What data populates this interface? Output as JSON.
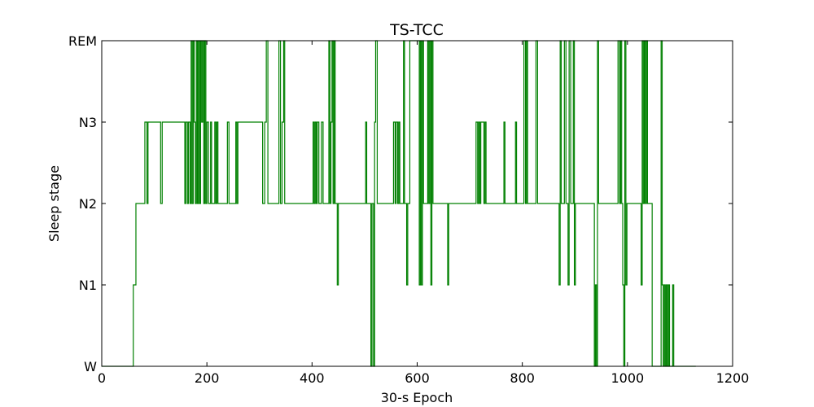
{
  "chart_data": {
    "type": "line",
    "title": "TS-TCC",
    "xlabel": "30-s Epoch",
    "ylabel": "Sleep stage",
    "xlim": [
      0,
      1200
    ],
    "x_ticks": [
      0,
      200,
      400,
      600,
      800,
      1000,
      1200
    ],
    "y_categories": [
      "W",
      "N1",
      "N2",
      "N3",
      "REM"
    ],
    "grid": false,
    "line_color": "#008000",
    "series": [
      {
        "step_points": [
          [
            0,
            0
          ],
          [
            60,
            0
          ],
          [
            60,
            1
          ],
          [
            65,
            1
          ],
          [
            65,
            2
          ],
          [
            82,
            2
          ],
          [
            82,
            3
          ],
          [
            86,
            3
          ],
          [
            86,
            2
          ],
          [
            88,
            2
          ],
          [
            88,
            3
          ],
          [
            112,
            3
          ],
          [
            112,
            2
          ],
          [
            115,
            2
          ],
          [
            115,
            3
          ],
          [
            158,
            3
          ],
          [
            158,
            2
          ],
          [
            160,
            2
          ],
          [
            160,
            3
          ],
          [
            163,
            3
          ],
          [
            163,
            2
          ],
          [
            165,
            2
          ],
          [
            165,
            3
          ],
          [
            168,
            3
          ],
          [
            168,
            2
          ],
          [
            170,
            2
          ],
          [
            170,
            4
          ],
          [
            172,
            4
          ],
          [
            172,
            2
          ],
          [
            174,
            2
          ],
          [
            174,
            4
          ],
          [
            176,
            4
          ],
          [
            176,
            3
          ],
          [
            178,
            3
          ],
          [
            178,
            2
          ],
          [
            180,
            2
          ],
          [
            180,
            4
          ],
          [
            182,
            4
          ],
          [
            182,
            2
          ],
          [
            184,
            2
          ],
          [
            184,
            4
          ],
          [
            186,
            4
          ],
          [
            186,
            2
          ],
          [
            188,
            2
          ],
          [
            188,
            4
          ],
          [
            190,
            4
          ],
          [
            190,
            3
          ],
          [
            192,
            3
          ],
          [
            192,
            4
          ],
          [
            194,
            4
          ],
          [
            194,
            2
          ],
          [
            196,
            2
          ],
          [
            196,
            4
          ],
          [
            198,
            4
          ],
          [
            198,
            2
          ],
          [
            200,
            2
          ],
          [
            200,
            3
          ],
          [
            203,
            3
          ],
          [
            203,
            2
          ],
          [
            207,
            2
          ],
          [
            207,
            3
          ],
          [
            209,
            3
          ],
          [
            209,
            2
          ],
          [
            215,
            2
          ],
          [
            215,
            3
          ],
          [
            217,
            3
          ],
          [
            217,
            2
          ],
          [
            219,
            2
          ],
          [
            219,
            3
          ],
          [
            221,
            3
          ],
          [
            221,
            2
          ],
          [
            239,
            2
          ],
          [
            239,
            3
          ],
          [
            242,
            3
          ],
          [
            242,
            2
          ],
          [
            255,
            2
          ],
          [
            255,
            3
          ],
          [
            257,
            3
          ],
          [
            257,
            2
          ],
          [
            259,
            2
          ],
          [
            259,
            3
          ],
          [
            306,
            3
          ],
          [
            306,
            2
          ],
          [
            310,
            2
          ],
          [
            310,
            3
          ],
          [
            313,
            3
          ],
          [
            313,
            4
          ],
          [
            316,
            4
          ],
          [
            316,
            2
          ],
          [
            337,
            2
          ],
          [
            337,
            4
          ],
          [
            340,
            4
          ],
          [
            340,
            2
          ],
          [
            343,
            2
          ],
          [
            343,
            3
          ],
          [
            346,
            3
          ],
          [
            346,
            4
          ],
          [
            348,
            4
          ],
          [
            348,
            2
          ],
          [
            402,
            2
          ],
          [
            402,
            3
          ],
          [
            404,
            3
          ],
          [
            404,
            2
          ],
          [
            406,
            2
          ],
          [
            406,
            3
          ],
          [
            408,
            3
          ],
          [
            408,
            2
          ],
          [
            410,
            2
          ],
          [
            410,
            3
          ],
          [
            413,
            3
          ],
          [
            413,
            2
          ],
          [
            418,
            2
          ],
          [
            418,
            3
          ],
          [
            421,
            3
          ],
          [
            421,
            2
          ],
          [
            432,
            2
          ],
          [
            432,
            4
          ],
          [
            434,
            4
          ],
          [
            434,
            2
          ],
          [
            436,
            2
          ],
          [
            436,
            3
          ],
          [
            438,
            3
          ],
          [
            438,
            4
          ],
          [
            440,
            4
          ],
          [
            440,
            2
          ],
          [
            442,
            2
          ],
          [
            442,
            4
          ],
          [
            444,
            4
          ],
          [
            444,
            2
          ],
          [
            448,
            2
          ],
          [
            448,
            1
          ],
          [
            450,
            1
          ],
          [
            450,
            2
          ],
          [
            502,
            2
          ],
          [
            502,
            3
          ],
          [
            504,
            3
          ],
          [
            504,
            2
          ],
          [
            512,
            2
          ],
          [
            512,
            0
          ],
          [
            514,
            0
          ],
          [
            514,
            2
          ],
          [
            517,
            2
          ],
          [
            517,
            0
          ],
          [
            519,
            0
          ],
          [
            519,
            3
          ],
          [
            521,
            3
          ],
          [
            521,
            4
          ],
          [
            524,
            4
          ],
          [
            524,
            2
          ],
          [
            555,
            2
          ],
          [
            555,
            3
          ],
          [
            558,
            3
          ],
          [
            558,
            2
          ],
          [
            560,
            2
          ],
          [
            560,
            3
          ],
          [
            563,
            3
          ],
          [
            563,
            2
          ],
          [
            565,
            2
          ],
          [
            565,
            3
          ],
          [
            567,
            3
          ],
          [
            567,
            2
          ],
          [
            574,
            2
          ],
          [
            574,
            4
          ],
          [
            576,
            4
          ],
          [
            576,
            2
          ],
          [
            580,
            2
          ],
          [
            580,
            1
          ],
          [
            582,
            1
          ],
          [
            582,
            2
          ],
          [
            586,
            2
          ],
          [
            586,
            4
          ],
          [
            604,
            4
          ],
          [
            604,
            1
          ],
          [
            606,
            1
          ],
          [
            606,
            4
          ],
          [
            608,
            4
          ],
          [
            608,
            1
          ],
          [
            610,
            1
          ],
          [
            610,
            4
          ],
          [
            612,
            4
          ],
          [
            612,
            2
          ],
          [
            620,
            2
          ],
          [
            620,
            4
          ],
          [
            622,
            4
          ],
          [
            622,
            2
          ],
          [
            624,
            2
          ],
          [
            624,
            4
          ],
          [
            626,
            4
          ],
          [
            626,
            1
          ],
          [
            628,
            1
          ],
          [
            628,
            4
          ],
          [
            630,
            4
          ],
          [
            630,
            2
          ],
          [
            658,
            2
          ],
          [
            658,
            1
          ],
          [
            660,
            1
          ],
          [
            660,
            2
          ],
          [
            712,
            2
          ],
          [
            712,
            3
          ],
          [
            715,
            3
          ],
          [
            715,
            2
          ],
          [
            717,
            2
          ],
          [
            717,
            3
          ],
          [
            719,
            3
          ],
          [
            719,
            2
          ],
          [
            721,
            2
          ],
          [
            721,
            3
          ],
          [
            727,
            3
          ],
          [
            727,
            2
          ],
          [
            729,
            2
          ],
          [
            729,
            3
          ],
          [
            731,
            3
          ],
          [
            731,
            2
          ],
          [
            765,
            2
          ],
          [
            765,
            3
          ],
          [
            767,
            3
          ],
          [
            767,
            2
          ],
          [
            787,
            2
          ],
          [
            787,
            3
          ],
          [
            789,
            3
          ],
          [
            789,
            2
          ],
          [
            803,
            2
          ],
          [
            803,
            4
          ],
          [
            806,
            4
          ],
          [
            806,
            2
          ],
          [
            808,
            2
          ],
          [
            808,
            4
          ],
          [
            810,
            4
          ],
          [
            810,
            2
          ],
          [
            826,
            2
          ],
          [
            826,
            4
          ],
          [
            829,
            4
          ],
          [
            829,
            2
          ],
          [
            870,
            2
          ],
          [
            870,
            1
          ],
          [
            872,
            1
          ],
          [
            872,
            4
          ],
          [
            874,
            4
          ],
          [
            874,
            2
          ],
          [
            880,
            2
          ],
          [
            880,
            4
          ],
          [
            883,
            4
          ],
          [
            883,
            2
          ],
          [
            887,
            2
          ],
          [
            887,
            1
          ],
          [
            889,
            1
          ],
          [
            889,
            4
          ],
          [
            892,
            4
          ],
          [
            892,
            2
          ],
          [
            897,
            2
          ],
          [
            897,
            4
          ],
          [
            899,
            4
          ],
          [
            899,
            1
          ],
          [
            901,
            1
          ],
          [
            901,
            2
          ],
          [
            937,
            2
          ],
          [
            937,
            0
          ],
          [
            939,
            0
          ],
          [
            939,
            1
          ],
          [
            941,
            1
          ],
          [
            941,
            0
          ],
          [
            943,
            0
          ],
          [
            943,
            4
          ],
          [
            945,
            4
          ],
          [
            945,
            2
          ],
          [
            982,
            2
          ],
          [
            982,
            4
          ],
          [
            985,
            4
          ],
          [
            985,
            2
          ],
          [
            987,
            2
          ],
          [
            987,
            4
          ],
          [
            989,
            4
          ],
          [
            989,
            2
          ],
          [
            991,
            2
          ],
          [
            991,
            1
          ],
          [
            993,
            1
          ],
          [
            993,
            0
          ],
          [
            995,
            0
          ],
          [
            995,
            4
          ],
          [
            997,
            4
          ],
          [
            997,
            1
          ],
          [
            999,
            1
          ],
          [
            999,
            2
          ],
          [
            1026,
            2
          ],
          [
            1026,
            1
          ],
          [
            1028,
            1
          ],
          [
            1028,
            4
          ],
          [
            1030,
            4
          ],
          [
            1030,
            2
          ],
          [
            1032,
            2
          ],
          [
            1032,
            4
          ],
          [
            1034,
            4
          ],
          [
            1034,
            2
          ],
          [
            1036,
            2
          ],
          [
            1036,
            4
          ],
          [
            1038,
            4
          ],
          [
            1038,
            2
          ],
          [
            1047,
            2
          ],
          [
            1047,
            0
          ],
          [
            1064,
            0
          ],
          [
            1064,
            4
          ],
          [
            1066,
            4
          ],
          [
            1066,
            1
          ],
          [
            1068,
            1
          ],
          [
            1068,
            0
          ],
          [
            1070,
            0
          ],
          [
            1070,
            1
          ],
          [
            1072,
            1
          ],
          [
            1072,
            0
          ],
          [
            1074,
            0
          ],
          [
            1074,
            1
          ],
          [
            1076,
            1
          ],
          [
            1076,
            0
          ],
          [
            1078,
            0
          ],
          [
            1078,
            1
          ],
          [
            1080,
            1
          ],
          [
            1080,
            0
          ],
          [
            1086,
            0
          ],
          [
            1086,
            1
          ],
          [
            1088,
            1
          ],
          [
            1088,
            0
          ],
          [
            1130,
            0
          ]
        ]
      }
    ]
  }
}
